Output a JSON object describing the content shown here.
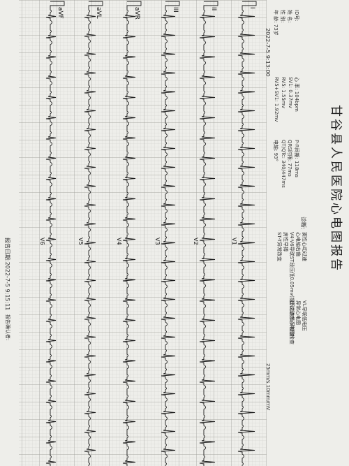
{
  "header": {
    "title": "甘谷县人民医院心电图报告"
  },
  "patient": [
    "ID号:",
    "姓 名:",
    "性 别:",
    "年 龄: 73岁"
  ],
  "measurements": {
    "left": [
      "心 率: 104bpm",
      "SV1: 0.37mv",
      "RV5: 1.55mv",
      "RV5+SV1: 1.92mv"
    ],
    "right": [
      "P-R间期: 118ms",
      "QRS时限: 77ms",
      "QT/QTc: 340/447ms",
      "电轴: 93°"
    ]
  },
  "exam_time": "2022-7-5 9:13:00",
  "diagnosis": {
    "label": "诊断:",
    "left": [
      "窦性心动过速",
      "心电轴右偏",
      "V4-V6导联ST段压低0.05mv(提示左房负荷增加)",
      "房性早搏",
      "ST-T异常改变"
    ],
    "right": [
      "VL导联低电压",
      "异常心电图",
      "建议动态心电图检查"
    ]
  },
  "speed": "25mm/s 10mm/mV",
  "leads": {
    "limb": [
      "I",
      "II",
      "III",
      "aVR",
      "aVL",
      "aVF"
    ],
    "chest": [
      "V1",
      "V2",
      "V3",
      "V4",
      "V5",
      "V6"
    ]
  },
  "footer": {
    "report_date": "报告日期:2022-7-5 9:15:11",
    "confirmer": "报告确认者:"
  }
}
